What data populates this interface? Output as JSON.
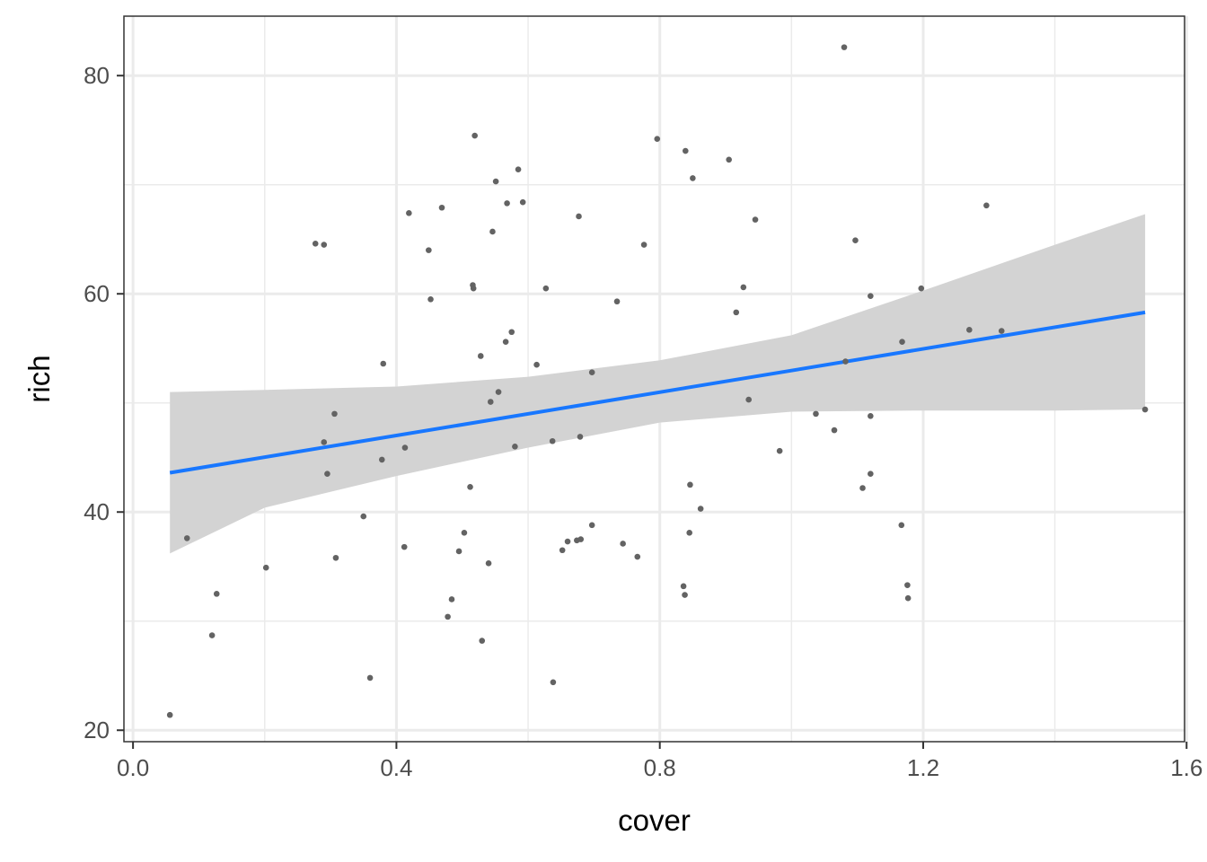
{
  "chart_data": {
    "type": "scatter",
    "title": "",
    "xlabel": "cover",
    "ylabel": "rich",
    "xlim": [
      -0.0138,
      1.5969
    ],
    "ylim": [
      18.95,
      85.45
    ],
    "x_ticks": [
      0.0,
      0.4,
      0.8,
      1.2,
      1.6
    ],
    "x_tick_labels": [
      "0.0",
      "0.4",
      "0.8",
      "1.2",
      "1.6"
    ],
    "y_ticks": [
      20,
      40,
      60,
      80
    ],
    "y_tick_labels": [
      "20",
      "40",
      "60",
      "80"
    ],
    "grid": true,
    "legend": "none",
    "colors": {
      "points": "#636363",
      "fit_line": "#1877ff",
      "confidence_band": "#d3d3d3",
      "grid": "#ebebeb",
      "panel_border": "#333333"
    },
    "points": [
      {
        "x": 0.056,
        "y": 21.4
      },
      {
        "x": 0.082,
        "y": 37.6
      },
      {
        "x": 0.12,
        "y": 28.7
      },
      {
        "x": 0.127,
        "y": 32.5
      },
      {
        "x": 0.202,
        "y": 34.9
      },
      {
        "x": 0.277,
        "y": 64.6
      },
      {
        "x": 0.29,
        "y": 64.5
      },
      {
        "x": 0.29,
        "y": 46.4
      },
      {
        "x": 0.295,
        "y": 43.5
      },
      {
        "x": 0.306,
        "y": 49.0
      },
      {
        "x": 0.308,
        "y": 35.8
      },
      {
        "x": 0.35,
        "y": 39.6
      },
      {
        "x": 0.36,
        "y": 24.8
      },
      {
        "x": 0.38,
        "y": 53.6
      },
      {
        "x": 0.378,
        "y": 44.8
      },
      {
        "x": 0.412,
        "y": 36.8
      },
      {
        "x": 0.413,
        "y": 45.9
      },
      {
        "x": 0.419,
        "y": 67.4
      },
      {
        "x": 0.449,
        "y": 64.0
      },
      {
        "x": 0.452,
        "y": 59.5
      },
      {
        "x": 0.469,
        "y": 67.9
      },
      {
        "x": 0.478,
        "y": 30.4
      },
      {
        "x": 0.484,
        "y": 32.0
      },
      {
        "x": 0.495,
        "y": 36.4
      },
      {
        "x": 0.503,
        "y": 38.1
      },
      {
        "x": 0.512,
        "y": 42.3
      },
      {
        "x": 0.516,
        "y": 60.8
      },
      {
        "x": 0.517,
        "y": 60.5
      },
      {
        "x": 0.519,
        "y": 74.5
      },
      {
        "x": 0.528,
        "y": 54.3
      },
      {
        "x": 0.53,
        "y": 28.2
      },
      {
        "x": 0.54,
        "y": 35.3
      },
      {
        "x": 0.543,
        "y": 50.1
      },
      {
        "x": 0.546,
        "y": 65.7
      },
      {
        "x": 0.551,
        "y": 70.3
      },
      {
        "x": 0.555,
        "y": 51.0
      },
      {
        "x": 0.566,
        "y": 55.6
      },
      {
        "x": 0.568,
        "y": 68.3
      },
      {
        "x": 0.575,
        "y": 56.5
      },
      {
        "x": 0.58,
        "y": 46.0
      },
      {
        "x": 0.585,
        "y": 71.4
      },
      {
        "x": 0.592,
        "y": 68.4
      },
      {
        "x": 0.613,
        "y": 53.5
      },
      {
        "x": 0.627,
        "y": 60.5
      },
      {
        "x": 0.637,
        "y": 46.5
      },
      {
        "x": 0.638,
        "y": 24.4
      },
      {
        "x": 0.652,
        "y": 36.5
      },
      {
        "x": 0.66,
        "y": 37.3
      },
      {
        "x": 0.674,
        "y": 37.4
      },
      {
        "x": 0.677,
        "y": 67.1
      },
      {
        "x": 0.679,
        "y": 46.9
      },
      {
        "x": 0.68,
        "y": 37.5
      },
      {
        "x": 0.697,
        "y": 52.8
      },
      {
        "x": 0.697,
        "y": 38.8
      },
      {
        "x": 0.735,
        "y": 59.3
      },
      {
        "x": 0.744,
        "y": 37.1
      },
      {
        "x": 0.766,
        "y": 35.9
      },
      {
        "x": 0.776,
        "y": 64.5
      },
      {
        "x": 0.796,
        "y": 74.2
      },
      {
        "x": 0.836,
        "y": 33.2
      },
      {
        "x": 0.838,
        "y": 32.4
      },
      {
        "x": 0.839,
        "y": 73.1
      },
      {
        "x": 0.845,
        "y": 38.1
      },
      {
        "x": 0.846,
        "y": 42.5
      },
      {
        "x": 0.85,
        "y": 70.6
      },
      {
        "x": 0.862,
        "y": 40.3
      },
      {
        "x": 0.905,
        "y": 72.3
      },
      {
        "x": 0.916,
        "y": 58.3
      },
      {
        "x": 0.927,
        "y": 60.6
      },
      {
        "x": 0.935,
        "y": 50.3
      },
      {
        "x": 0.945,
        "y": 66.8
      },
      {
        "x": 0.982,
        "y": 45.6
      },
      {
        "x": 1.037,
        "y": 49.0
      },
      {
        "x": 1.065,
        "y": 47.5
      },
      {
        "x": 1.08,
        "y": 82.6
      },
      {
        "x": 1.082,
        "y": 53.8
      },
      {
        "x": 1.097,
        "y": 64.9
      },
      {
        "x": 1.108,
        "y": 42.2
      },
      {
        "x": 1.12,
        "y": 59.8
      },
      {
        "x": 1.12,
        "y": 48.8
      },
      {
        "x": 1.12,
        "y": 43.5
      },
      {
        "x": 1.167,
        "y": 38.8
      },
      {
        "x": 1.168,
        "y": 55.6
      },
      {
        "x": 1.176,
        "y": 33.3
      },
      {
        "x": 1.177,
        "y": 32.1
      },
      {
        "x": 1.197,
        "y": 60.5
      },
      {
        "x": 1.27,
        "y": 56.7
      },
      {
        "x": 1.296,
        "y": 68.1
      },
      {
        "x": 1.319,
        "y": 56.6
      },
      {
        "x": 1.537,
        "y": 49.4
      }
    ],
    "fit_line": {
      "x": [
        0.056,
        1.537
      ],
      "y": [
        43.6,
        58.3
      ]
    },
    "confidence_band": {
      "x": [
        0.056,
        0.2,
        0.4,
        0.6,
        0.8,
        1.0,
        1.2,
        1.4,
        1.537
      ],
      "lower": [
        36.2,
        40.4,
        43.3,
        45.9,
        48.2,
        49.2,
        49.3,
        49.3,
        49.4
      ],
      "upper": [
        51.0,
        51.2,
        51.5,
        52.4,
        53.9,
        56.2,
        60.3,
        64.5,
        67.3
      ]
    }
  }
}
